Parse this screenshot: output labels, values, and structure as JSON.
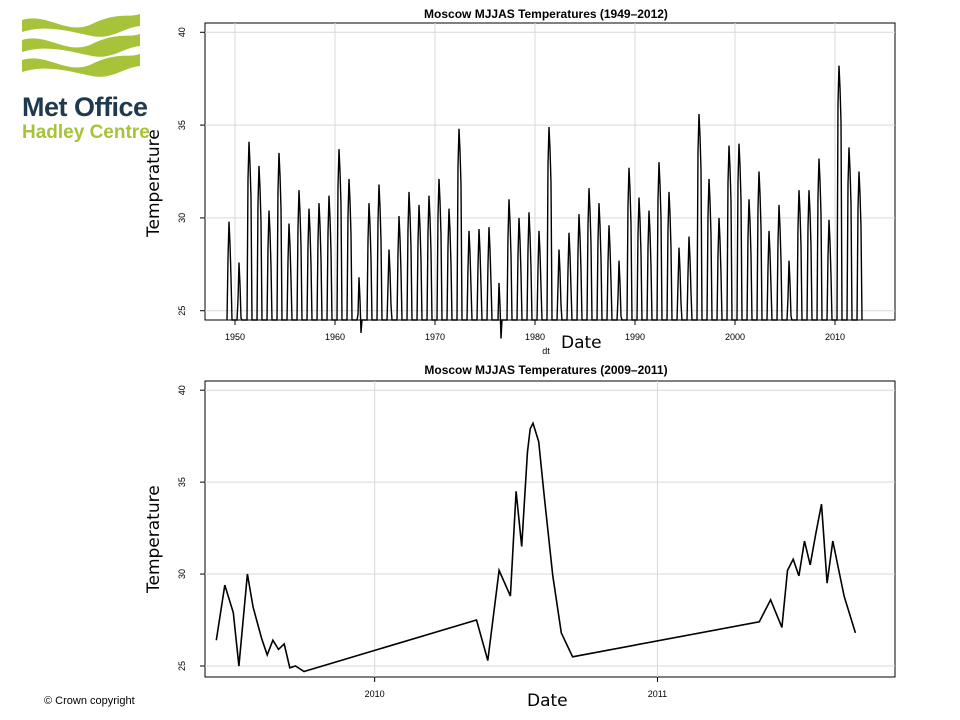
{
  "logo": {
    "line1": "Met Office",
    "line2": "Hadley Centre"
  },
  "footer": {
    "copyright": "© Crown copyright"
  },
  "chart_data": [
    {
      "type": "line",
      "title": "Moscow MJJAS Temperatures (1949–2012)",
      "xlabel": "Date",
      "xlabel_small": "dt",
      "ylabel": "Temperature",
      "xlim": [
        1947,
        2016
      ],
      "ylim": [
        24.5,
        40.5
      ],
      "xticks": [
        1950,
        1960,
        1970,
        1980,
        1990,
        2000,
        2010
      ],
      "yticks": [
        25,
        30,
        35,
        40
      ],
      "grid": true,
      "series": [
        {
          "x": [
            1949.5,
            1950.5,
            1951.5,
            1952.5,
            1953.5,
            1954.5,
            1955.5,
            1956.5,
            1957.5,
            1958.5,
            1959.5,
            1960.5,
            1961.5,
            1962.5,
            1963.5,
            1964.5,
            1965.5,
            1966.5,
            1967.5,
            1968.5,
            1969.5,
            1970.5,
            1971.5,
            1972.5,
            1973.5,
            1974.5,
            1975.5,
            1976.5,
            1977.5,
            1978.5,
            1979.5,
            1980.5,
            1981.5,
            1982.5,
            1983.5,
            1984.5,
            1985.5,
            1986.5,
            1987.5,
            1988.5,
            1989.5,
            1990.5,
            1991.5,
            1992.5,
            1993.5,
            1994.5,
            1995.5,
            1996.5,
            1997.5,
            1998.5,
            1999.5,
            2000.5,
            2001.5,
            2002.5,
            2003.5,
            2004.5,
            2005.5,
            2006.5,
            2007.5,
            2008.5,
            2009.5,
            2010.5,
            2011.5,
            2012.5
          ],
          "y": [
            29.8,
            27.6,
            34.1,
            32.8,
            30.4,
            33.5,
            29.7,
            31.5,
            30.5,
            30.8,
            31.2,
            33.7,
            32.1,
            26.8,
            30.8,
            31.8,
            28.3,
            30.1,
            31.4,
            30.7,
            31.2,
            32.1,
            30.5,
            34.8,
            29.3,
            29.4,
            29.5,
            26.5,
            31.0,
            30.0,
            30.3,
            29.3,
            34.9,
            28.3,
            29.2,
            30.2,
            31.6,
            30.8,
            29.6,
            27.7,
            32.7,
            31.1,
            30.4,
            33.0,
            31.4,
            28.4,
            29.0,
            35.6,
            32.1,
            30.0,
            33.9,
            34.0,
            31.0,
            32.5,
            29.3,
            30.7,
            27.7,
            31.5,
            31.5,
            33.2,
            29.9,
            38.2,
            33.8,
            32.5
          ]
        }
      ]
    },
    {
      "type": "line",
      "title": "Moscow MJJAS Temperatures (2009–2011)",
      "xlabel": "Date",
      "ylabel": "Temperature",
      "xlim": [
        2009.4,
        2011.84
      ],
      "ylim": [
        24.4,
        40.5
      ],
      "xticks": [
        2010,
        2011
      ],
      "yticks": [
        25,
        30,
        35,
        40
      ],
      "grid": true,
      "series": [
        {
          "x": [
            2009.44,
            2009.47,
            2009.5,
            2009.52,
            2009.55,
            2009.57,
            2009.6,
            2009.62,
            2009.64,
            2009.66,
            2009.68,
            2009.7,
            2009.72,
            2009.75,
            2010.36,
            2010.4,
            2010.44,
            2010.48,
            2010.5,
            2010.52,
            2010.54,
            2010.55,
            2010.56,
            2010.58,
            2010.6,
            2010.63,
            2010.66,
            2010.7,
            2011.36,
            2011.4,
            2011.44,
            2011.46,
            2011.48,
            2011.5,
            2011.52,
            2011.54,
            2011.56,
            2011.58,
            2011.6,
            2011.62,
            2011.66,
            2011.7
          ],
          "y": [
            26.4,
            29.4,
            27.9,
            25.0,
            30.0,
            28.2,
            26.5,
            25.6,
            26.4,
            25.9,
            26.2,
            24.9,
            25.0,
            24.7,
            27.5,
            25.3,
            30.2,
            28.8,
            34.5,
            31.5,
            36.6,
            37.9,
            38.2,
            37.2,
            34.2,
            29.9,
            26.8,
            25.5,
            27.4,
            28.6,
            27.1,
            30.2,
            30.8,
            29.9,
            31.8,
            30.5,
            32.2,
            33.8,
            29.5,
            31.8,
            28.8,
            26.8
          ]
        }
      ]
    }
  ]
}
